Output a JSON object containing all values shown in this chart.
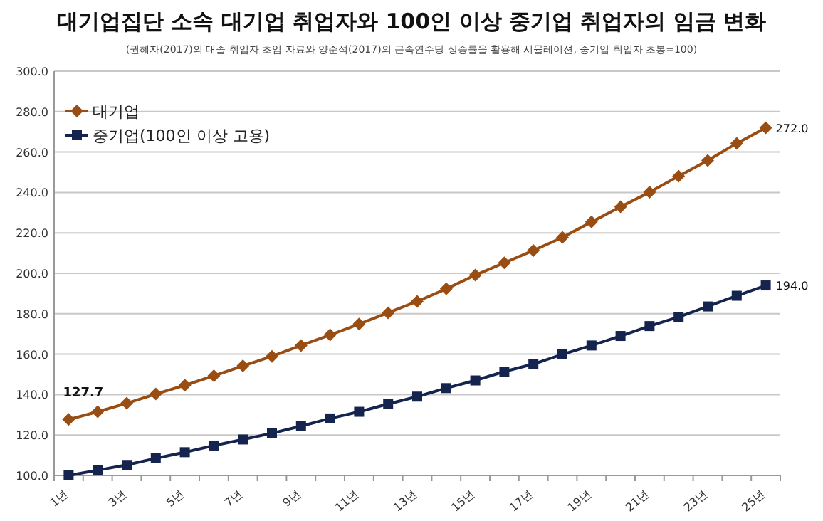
{
  "chart_data": {
    "type": "line",
    "title": "대기업집단 소속 대기업 취업자와 100인 이상 중기업 취업자의 임금 변화",
    "subtitle": "(권혜자(2017)의 대졸 취업자 초임 자료와 양준석(2017)의 근속연수당 상승률을 활용해 시뮬레이션, 중기업 취업자 초봉=100)",
    "categories": [
      "1년",
      null,
      "3년",
      null,
      "5년",
      null,
      "7년",
      null,
      "9년",
      null,
      "11년",
      null,
      "13년",
      null,
      "15년",
      null,
      "17년",
      null,
      "19년",
      null,
      "21년",
      null,
      "23년",
      null,
      "25년"
    ],
    "series": [
      {
        "name": "대기업",
        "color": "#9a4d12",
        "marker": "diamond",
        "values": [
          127.7,
          131.5,
          135.7,
          140.3,
          144.6,
          149.3,
          154.2,
          158.9,
          164.3,
          169.5,
          174.9,
          180.5,
          186.1,
          192.3,
          199.1,
          205.2,
          211.3,
          217.8,
          225.4,
          232.9,
          240.1,
          248.1,
          255.8,
          264.3,
          272.0
        ],
        "value_labels": [
          "127.7",
          null,
          null,
          null,
          null,
          null,
          null,
          null,
          null,
          null,
          null,
          null,
          null,
          null,
          null,
          null,
          null,
          null,
          null,
          null,
          null,
          null,
          null,
          null,
          "272.0"
        ]
      },
      {
        "name": "중기업(100인 이상 고용)",
        "color": "#14244f",
        "marker": "square",
        "values": [
          100.0,
          102.6,
          105.2,
          108.5,
          111.5,
          114.8,
          117.8,
          120.9,
          124.4,
          128.2,
          131.5,
          135.4,
          139.0,
          143.2,
          147.0,
          151.4,
          155.1,
          159.9,
          164.3,
          169.0,
          173.9,
          178.4,
          183.6,
          188.9,
          194.0
        ],
        "value_labels": [
          null,
          null,
          null,
          null,
          null,
          null,
          null,
          null,
          null,
          null,
          null,
          null,
          null,
          null,
          null,
          null,
          null,
          null,
          null,
          null,
          null,
          null,
          null,
          null,
          "194.0"
        ]
      }
    ],
    "ylim": [
      100,
      300
    ],
    "yticks": [
      {
        "value": 100,
        "label": "100.0"
      },
      {
        "value": 120,
        "label": "120.0"
      },
      {
        "value": 140,
        "label": "140.0"
      },
      {
        "value": 160,
        "label": "160.0"
      },
      {
        "value": 180,
        "label": "180.0"
      },
      {
        "value": 200,
        "label": "200.0"
      },
      {
        "value": 220,
        "label": "220.0"
      },
      {
        "value": 240,
        "label": "240.0"
      },
      {
        "value": 260,
        "label": "260.0"
      },
      {
        "value": 280,
        "label": "280.0"
      },
      {
        "value": 300,
        "label": "300.0"
      }
    ],
    "grid": "y",
    "legend": "top left"
  }
}
